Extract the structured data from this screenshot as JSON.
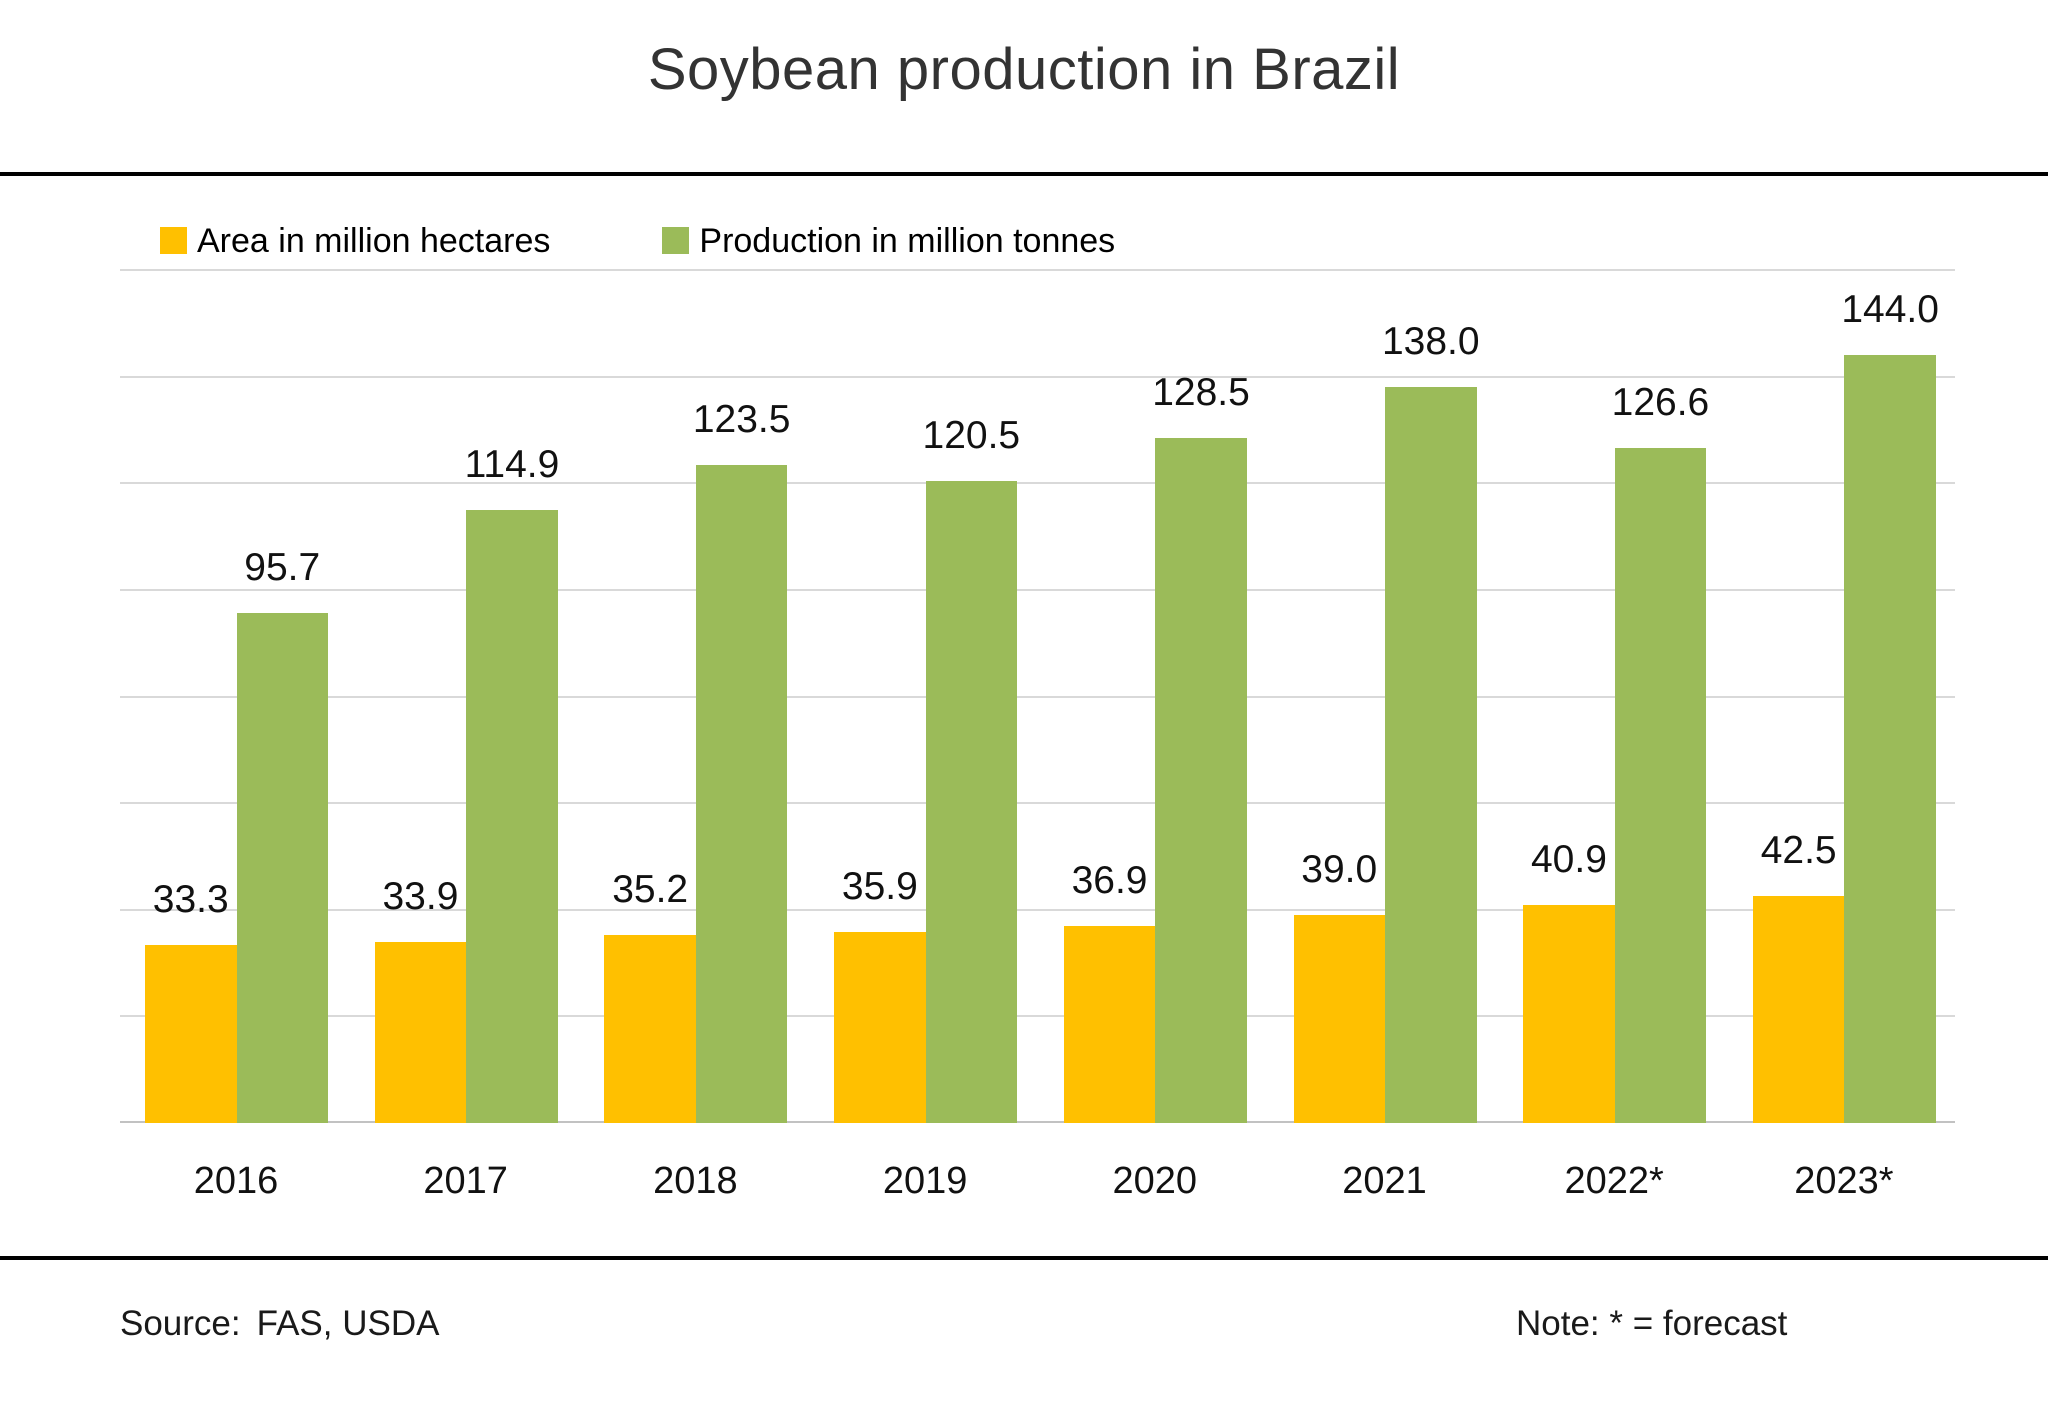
{
  "title": "Soybean production in Brazil",
  "legend": [
    {
      "label": "Area in million hectares",
      "color": "#FFC000"
    },
    {
      "label": "Production in million tonnes",
      "color": "#9BBB59"
    }
  ],
  "chart_data": {
    "type": "bar",
    "title": "Soybean production in Brazil",
    "categories": [
      "2016",
      "2017",
      "2018",
      "2019",
      "2020",
      "2021",
      "2022*",
      "2023*"
    ],
    "series": [
      {
        "name": "Area in million hectares",
        "color": "#FFC000",
        "values": [
          33.3,
          33.9,
          35.2,
          35.9,
          36.9,
          39.0,
          40.9,
          42.5
        ]
      },
      {
        "name": "Production in million tonnes",
        "color": "#9BBB59",
        "values": [
          95.7,
          114.9,
          123.5,
          120.5,
          128.5,
          138.0,
          126.6,
          144.0
        ]
      }
    ],
    "xlabel": "",
    "ylabel": "",
    "ylim": [
      0,
      160
    ],
    "grid_step": 20,
    "grid": "horizontal-only",
    "y_axis_labels_visible": false,
    "value_labels": true,
    "value_label_format": "one-decimal",
    "legend_position": "top-left",
    "gridline_color": "#D9D9D9"
  },
  "footer": {
    "source_label": "Source:",
    "source_value": "FAS, USDA",
    "note": "Note: * = forecast"
  }
}
